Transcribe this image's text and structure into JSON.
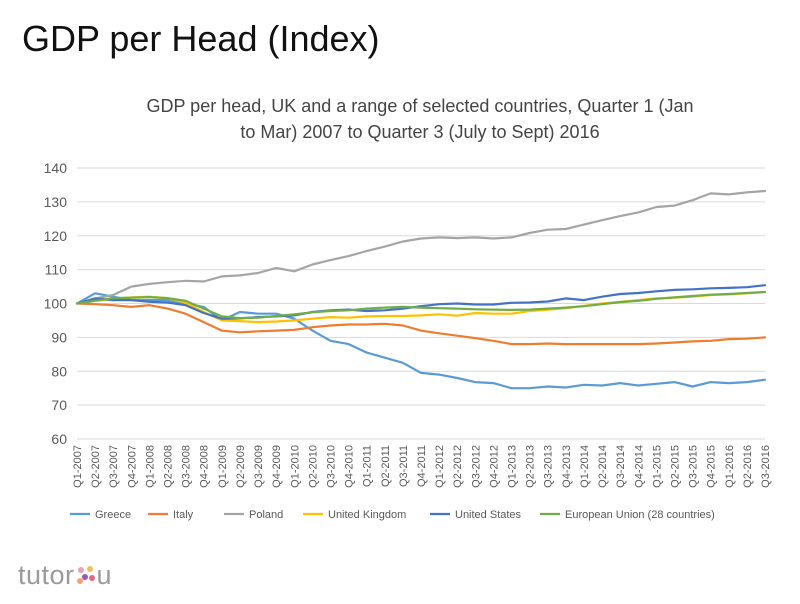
{
  "slide": {
    "title": "GDP per Head (Index)"
  },
  "brand": {
    "logo_left": "tutor",
    "logo_right": "u"
  },
  "chart_data": {
    "type": "line",
    "title": "GDP per head, UK and a range of selected countries, Quarter 1 (Jan to Mar) 2007 to Quarter 3 (July to Sept) 2016",
    "title_lines": [
      "GDP per head, UK and a range of selected countries, Quarter 1 (Jan",
      "to Mar) 2007 to Quarter 3 (July to Sept) 2016"
    ],
    "xlabel": "",
    "ylabel": "",
    "ylim": [
      60,
      140
    ],
    "yticks": [
      60,
      70,
      80,
      90,
      100,
      110,
      120,
      130,
      140
    ],
    "grid": true,
    "legend": "bottom",
    "categories": [
      "Q1-2007",
      "Q2-2007",
      "Q3-2007",
      "Q4-2007",
      "Q1-2008",
      "Q2-2008",
      "Q3-2008",
      "Q4-2008",
      "Q1-2009",
      "Q2-2009",
      "Q3-2009",
      "Q4-2009",
      "Q1-2010",
      "Q2-2010",
      "Q3-2010",
      "Q4-2010",
      "Q1-2011",
      "Q2-2011",
      "Q3-2011",
      "Q4-2011",
      "Q1-2012",
      "Q2-2012",
      "Q3-2012",
      "Q4-2012",
      "Q1-2013",
      "Q2-2013",
      "Q3-2013",
      "Q4-2013",
      "Q1-2014",
      "Q2-2014",
      "Q3-2014",
      "Q4-2014",
      "Q1-2015",
      "Q2-2015",
      "Q3-2015",
      "Q4-2015",
      "Q1-2016",
      "Q2-2016",
      "Q3-2016"
    ],
    "series": [
      {
        "name": "Greece",
        "color": "#5B9BD5",
        "values": [
          100,
          103,
          102,
          101,
          101,
          101,
          100,
          99,
          95,
          97.5,
          97,
          97,
          95.5,
          92,
          89,
          88,
          85.5,
          84,
          82.5,
          79.5,
          79,
          78,
          76.8,
          76.5,
          75,
          75,
          75.5,
          75.2,
          76,
          75.8,
          76.5,
          75.8,
          76.3,
          76.8,
          75.5,
          76.8,
          76.5,
          76.8,
          77.5
        ]
      },
      {
        "name": "Italy",
        "color": "#ED7D31",
        "values": [
          100,
          99.8,
          99.5,
          99,
          99.5,
          98.5,
          97,
          94.5,
          92,
          91.5,
          91.8,
          92,
          92.2,
          93,
          93.5,
          93.8,
          93.8,
          94,
          93.5,
          92,
          91.2,
          90.5,
          89.8,
          89,
          88,
          88,
          88.2,
          88,
          88,
          88,
          88,
          88,
          88.2,
          88.5,
          88.8,
          89,
          89.5,
          89.6,
          90
        ]
      },
      {
        "name": "Poland",
        "color": "#A5A5A5",
        "values": [
          100,
          101.5,
          102.5,
          105,
          105.8,
          106.3,
          106.7,
          106.5,
          108,
          108.3,
          109,
          110.5,
          109.5,
          111.5,
          112.8,
          114,
          115.5,
          116.8,
          118.3,
          119.2,
          119.5,
          119.3,
          119.5,
          119.2,
          119.5,
          120.8,
          121.8,
          122,
          123.3,
          124.6,
          125.8,
          126.9,
          128.5,
          128.9,
          130.5,
          132.5,
          132.2,
          132.8,
          133.2
        ]
      },
      {
        "name": "United Kingdom",
        "color": "#FFC000",
        "values": [
          100,
          100.8,
          101.3,
          101.8,
          102,
          101.6,
          100.2,
          97.5,
          95,
          94.8,
          94.5,
          94.7,
          95,
          95.5,
          96,
          95.8,
          96.2,
          96.3,
          96.3,
          96.5,
          96.8,
          96.4,
          97.2,
          97,
          97,
          97.8,
          98.2,
          98.6,
          99.3,
          100,
          100.5,
          101,
          101.5,
          101.7,
          102,
          102.5,
          102.7,
          103,
          103.4
        ]
      },
      {
        "name": "United States",
        "color": "#4472C4",
        "values": [
          100,
          101.5,
          101,
          101,
          100.5,
          100.3,
          99.5,
          97.2,
          95.5,
          95.6,
          96,
          96.2,
          96.5,
          97.5,
          98,
          98.2,
          97.8,
          98,
          98.5,
          99.2,
          99.8,
          100,
          99.7,
          99.7,
          100.2,
          100.3,
          100.6,
          101.5,
          101,
          102,
          102.8,
          103.1,
          103.6,
          104,
          104.2,
          104.5,
          104.6,
          104.8,
          105.4
        ]
      },
      {
        "name": "European Union (28 countries)",
        "color": "#70AD47",
        "values": [
          100,
          100.8,
          101.6,
          101.7,
          101.9,
          101.6,
          100.8,
          98.5,
          96.2,
          95.7,
          95.8,
          96.3,
          96.8,
          97.4,
          97.8,
          98,
          98.5,
          98.8,
          99,
          98.8,
          98.6,
          98.5,
          98.3,
          98.2,
          98.1,
          98.2,
          98.5,
          98.8,
          99.2,
          99.8,
          100.4,
          100.8,
          101.4,
          101.8,
          102.2,
          102.6,
          102.8,
          103.1,
          103.4
        ]
      }
    ]
  }
}
